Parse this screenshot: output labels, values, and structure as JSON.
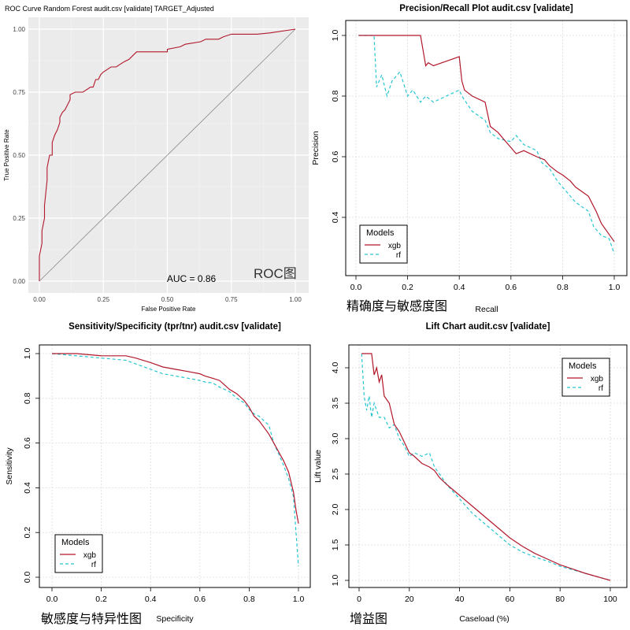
{
  "colors": {
    "xgb": "#b2182b",
    "rf": "#26c6d1",
    "panel_bg": "#ebebeb",
    "grid_light": "#dddddd",
    "diag": "#888888"
  },
  "chart_data": [
    {
      "type": "line",
      "id": "roc",
      "title": "ROC Curve Random Forest audit.csv [validate] TARGET_Adjusted",
      "xlabel": "False Positive Rate",
      "ylabel": "True Positive Rate",
      "xlim": [
        0,
        1
      ],
      "ylim": [
        0,
        1
      ],
      "xticks": [
        "0.00",
        "0.25",
        "0.50",
        "0.75",
        "1.00"
      ],
      "yticks": [
        "0.00",
        "0.25",
        "0.50",
        "0.75",
        "1.00"
      ],
      "annotation": "AUC = 0.86",
      "caption": "ROC图",
      "series": [
        {
          "name": "ROC",
          "x": [
            0,
            0,
            0.01,
            0.01,
            0.02,
            0.02,
            0.03,
            0.03,
            0.04,
            0.05,
            0.05,
            0.06,
            0.07,
            0.08,
            0.08,
            0.09,
            0.1,
            0.11,
            0.12,
            0.12,
            0.14,
            0.17,
            0.2,
            0.21,
            0.22,
            0.23,
            0.24,
            0.25,
            0.28,
            0.3,
            0.33,
            0.35,
            0.36,
            0.38,
            0.5,
            0.5,
            0.55,
            0.57,
            0.63,
            0.65,
            0.7,
            0.72,
            0.75,
            0.85,
            0.9,
            1.0
          ],
          "y": [
            0,
            0.1,
            0.15,
            0.2,
            0.25,
            0.3,
            0.4,
            0.45,
            0.5,
            0.5,
            0.55,
            0.58,
            0.6,
            0.63,
            0.65,
            0.67,
            0.68,
            0.7,
            0.72,
            0.74,
            0.75,
            0.75,
            0.77,
            0.77,
            0.8,
            0.8,
            0.82,
            0.83,
            0.85,
            0.85,
            0.87,
            0.88,
            0.89,
            0.91,
            0.91,
            0.92,
            0.93,
            0.94,
            0.95,
            0.96,
            0.96,
            0.97,
            0.98,
            0.98,
            0.985,
            1.0
          ]
        },
        {
          "name": "diagonal",
          "x": [
            0,
            1
          ],
          "y": [
            0,
            1
          ]
        }
      ]
    },
    {
      "type": "line",
      "id": "pr",
      "title": "Precision/Recall Plot  audit.csv [validate]",
      "xlabel": "Recall",
      "ylabel": "Precision",
      "xlim": [
        0,
        1
      ],
      "ylim": [
        0.2,
        1.02
      ],
      "xticks": [
        "0.0",
        "0.2",
        "0.4",
        "0.6",
        "0.8",
        "1.0"
      ],
      "yticks": [
        "0.4",
        "0.6",
        "0.8",
        "1.0"
      ],
      "legend_title": "Models",
      "caption": "精确度与敏感度图",
      "series": [
        {
          "name": "xgb",
          "x": [
            0.01,
            0.25,
            0.26,
            0.27,
            0.28,
            0.3,
            0.4,
            0.41,
            0.42,
            0.45,
            0.5,
            0.52,
            0.55,
            0.58,
            0.6,
            0.62,
            0.65,
            0.7,
            0.73,
            0.75,
            0.78,
            0.8,
            0.83,
            0.85,
            0.9,
            0.93,
            0.95,
            1.0
          ],
          "y": [
            1.0,
            1.0,
            0.95,
            0.9,
            0.91,
            0.9,
            0.93,
            0.85,
            0.82,
            0.8,
            0.78,
            0.7,
            0.68,
            0.65,
            0.63,
            0.61,
            0.62,
            0.6,
            0.59,
            0.57,
            0.55,
            0.54,
            0.52,
            0.5,
            0.47,
            0.42,
            0.38,
            0.32
          ]
        },
        {
          "name": "rf",
          "x": [
            0.01,
            0.07,
            0.08,
            0.1,
            0.12,
            0.14,
            0.17,
            0.2,
            0.22,
            0.25,
            0.27,
            0.3,
            0.35,
            0.4,
            0.41,
            0.45,
            0.5,
            0.52,
            0.55,
            0.6,
            0.62,
            0.65,
            0.7,
            0.72,
            0.75,
            0.78,
            0.8,
            0.83,
            0.85,
            0.9,
            0.92,
            0.95,
            0.98,
            1.0
          ],
          "y": [
            1.0,
            1.0,
            0.83,
            0.87,
            0.8,
            0.85,
            0.88,
            0.8,
            0.82,
            0.78,
            0.8,
            0.78,
            0.8,
            0.82,
            0.8,
            0.75,
            0.72,
            0.68,
            0.66,
            0.65,
            0.67,
            0.64,
            0.62,
            0.58,
            0.56,
            0.52,
            0.5,
            0.47,
            0.45,
            0.42,
            0.37,
            0.34,
            0.33,
            0.28
          ]
        }
      ]
    },
    {
      "type": "line",
      "id": "ss",
      "title": "Sensitivity/Specificity (tpr/tnr)  audit.csv [validate]",
      "xlabel": "Specificity",
      "ylabel": "Sensitivity",
      "xlim": [
        0,
        1
      ],
      "ylim": [
        0,
        1
      ],
      "xticks": [
        "0.0",
        "0.2",
        "0.4",
        "0.6",
        "0.8",
        "1.0"
      ],
      "yticks": [
        "0.0",
        "0.2",
        "0.4",
        "0.6",
        "0.8",
        "1.0"
      ],
      "legend_title": "Models",
      "caption": "敏感度与特异性图",
      "series": [
        {
          "name": "xgb",
          "x": [
            0,
            0.1,
            0.2,
            0.3,
            0.34,
            0.4,
            0.45,
            0.5,
            0.55,
            0.6,
            0.62,
            0.65,
            0.68,
            0.7,
            0.72,
            0.75,
            0.78,
            0.8,
            0.82,
            0.84,
            0.86,
            0.88,
            0.9,
            0.92,
            0.94,
            0.96,
            0.98,
            0.99,
            1.0
          ],
          "y": [
            1.0,
            1.0,
            0.99,
            0.99,
            0.98,
            0.96,
            0.94,
            0.93,
            0.92,
            0.91,
            0.9,
            0.89,
            0.88,
            0.86,
            0.84,
            0.82,
            0.79,
            0.76,
            0.72,
            0.7,
            0.67,
            0.64,
            0.6,
            0.56,
            0.52,
            0.47,
            0.38,
            0.3,
            0.24
          ]
        },
        {
          "name": "rf",
          "x": [
            0,
            0.1,
            0.2,
            0.3,
            0.35,
            0.4,
            0.45,
            0.5,
            0.55,
            0.6,
            0.63,
            0.65,
            0.68,
            0.7,
            0.72,
            0.75,
            0.78,
            0.8,
            0.82,
            0.84,
            0.86,
            0.88,
            0.9,
            0.92,
            0.94,
            0.96,
            0.97,
            0.98,
            0.99,
            1.0
          ],
          "y": [
            1.0,
            0.99,
            0.98,
            0.97,
            0.95,
            0.93,
            0.91,
            0.9,
            0.89,
            0.88,
            0.87,
            0.87,
            0.85,
            0.84,
            0.83,
            0.8,
            0.78,
            0.75,
            0.73,
            0.72,
            0.7,
            0.68,
            0.6,
            0.55,
            0.5,
            0.44,
            0.4,
            0.36,
            0.2,
            0.05
          ]
        }
      ]
    },
    {
      "type": "line",
      "id": "lift",
      "title": "Lift Chart  audit.csv [validate]",
      "xlabel": "Caseload (%)",
      "ylabel": "Lift value",
      "xlim": [
        -3,
        103
      ],
      "ylim": [
        0.85,
        4.3
      ],
      "xticks": [
        "0",
        "20",
        "40",
        "60",
        "80",
        "100"
      ],
      "yticks": [
        "1.0",
        "1.5",
        "2.0",
        "2.5",
        "3.0",
        "3.5",
        "4.0"
      ],
      "legend_title": "Models",
      "caption": "增益图",
      "series": [
        {
          "name": "xgb",
          "x": [
            1,
            5,
            6,
            7,
            8,
            9,
            10,
            12,
            14,
            16,
            18,
            20,
            22,
            25,
            28,
            30,
            32,
            35,
            40,
            45,
            50,
            55,
            60,
            65,
            70,
            75,
            80,
            85,
            90,
            95,
            100
          ],
          "y": [
            4.2,
            4.2,
            3.9,
            4.0,
            3.8,
            3.9,
            3.6,
            3.5,
            3.2,
            3.1,
            2.95,
            2.8,
            2.75,
            2.65,
            2.6,
            2.55,
            2.45,
            2.35,
            2.2,
            2.05,
            1.9,
            1.75,
            1.6,
            1.48,
            1.38,
            1.3,
            1.22,
            1.16,
            1.1,
            1.05,
            1.0
          ]
        },
        {
          "name": "rf",
          "x": [
            1,
            2,
            3,
            4,
            5,
            6,
            7,
            8,
            10,
            12,
            14,
            16,
            18,
            20,
            22,
            25,
            28,
            30,
            32,
            35,
            40,
            45,
            50,
            55,
            60,
            65,
            70,
            75,
            80,
            85,
            90,
            95,
            100
          ],
          "y": [
            4.2,
            3.6,
            3.4,
            3.6,
            3.3,
            3.5,
            3.4,
            3.3,
            3.3,
            3.15,
            3.2,
            3.0,
            2.9,
            2.75,
            2.8,
            2.75,
            2.8,
            2.6,
            2.5,
            2.35,
            2.15,
            1.95,
            1.8,
            1.65,
            1.5,
            1.4,
            1.33,
            1.27,
            1.2,
            1.15,
            1.1,
            1.05,
            1.0
          ]
        }
      ]
    }
  ]
}
